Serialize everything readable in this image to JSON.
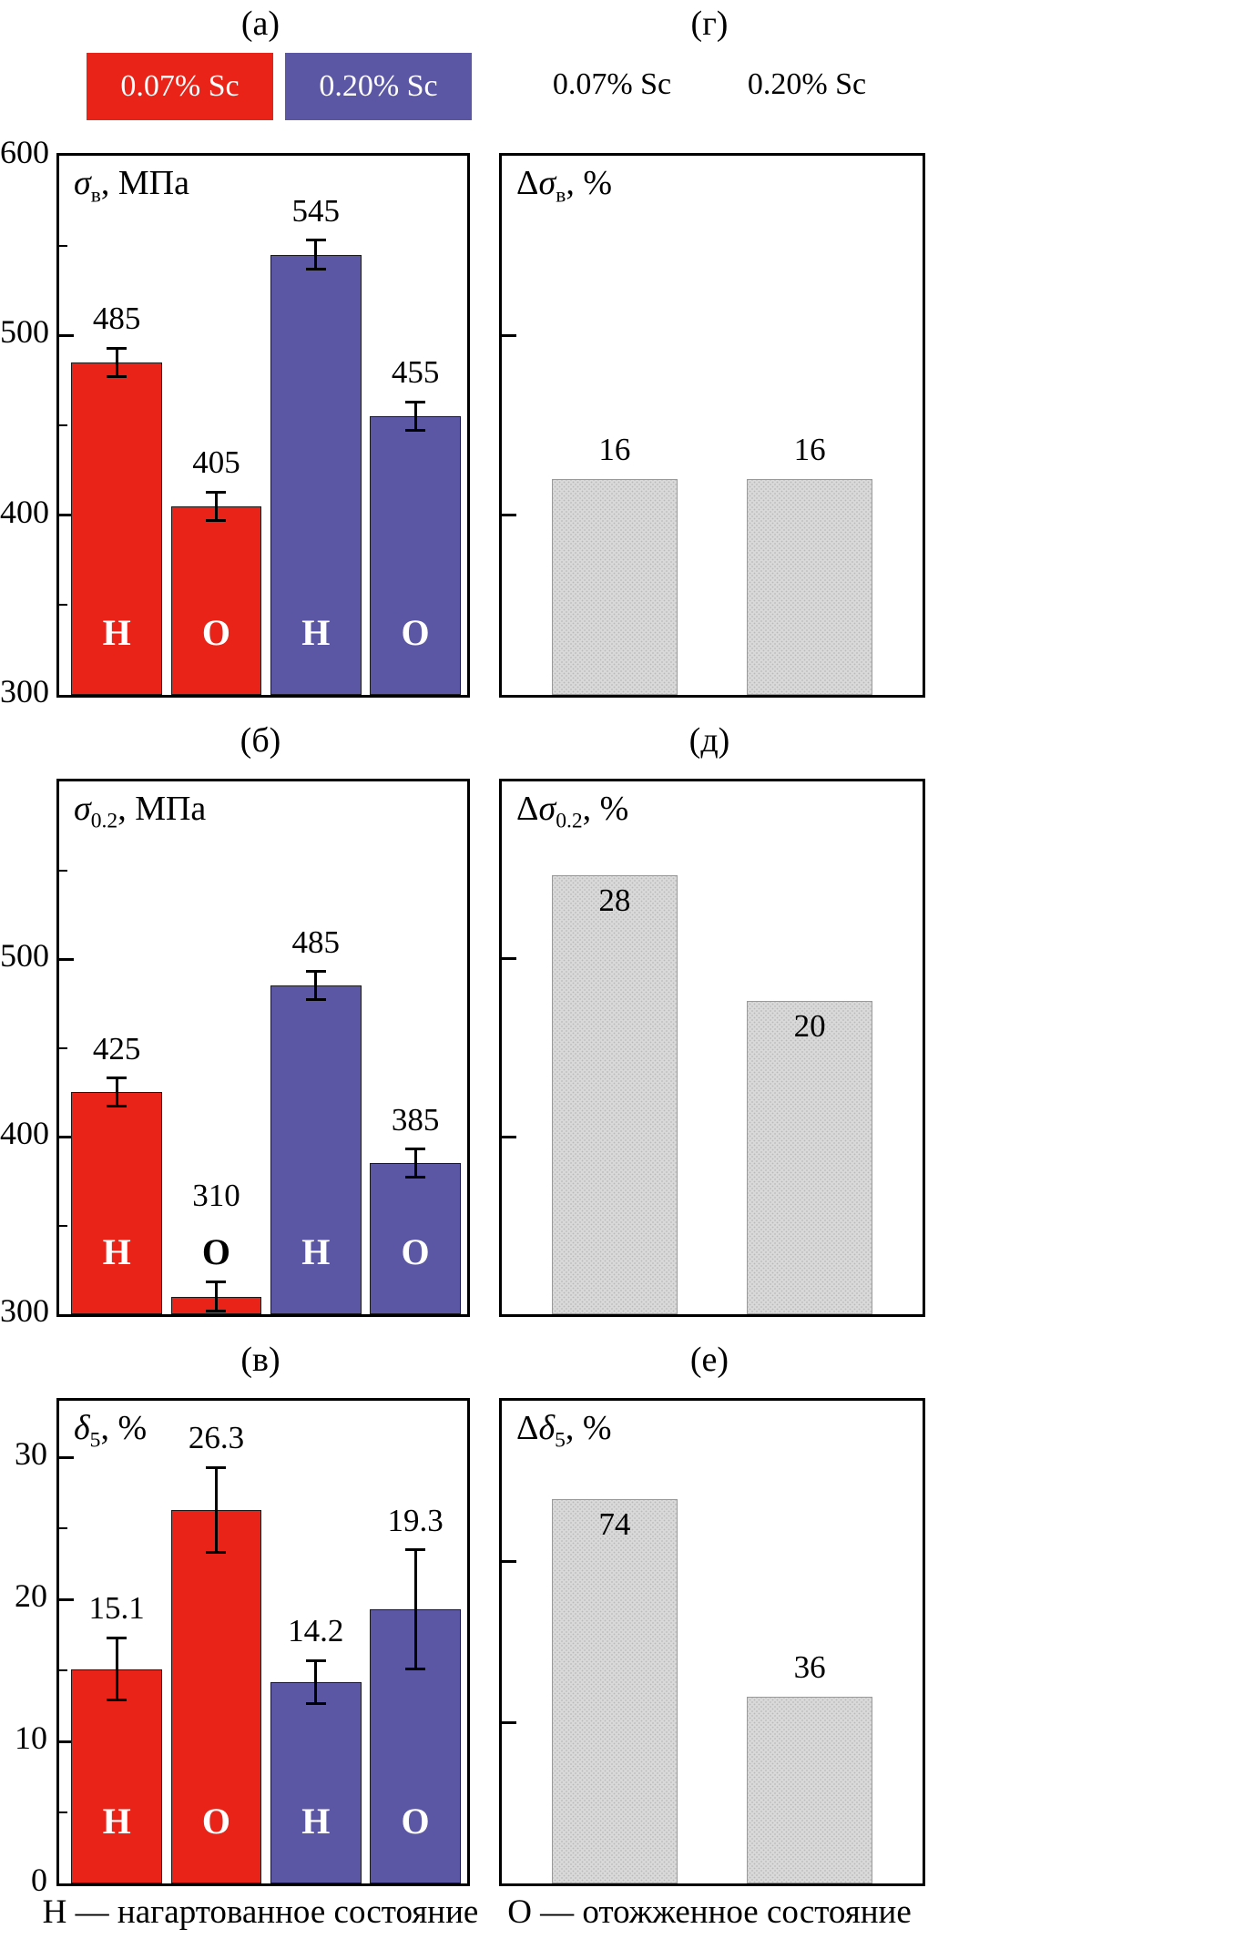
{
  "legend": {
    "items": [
      {
        "label": "0.07% Sc",
        "color": "#ea2318",
        "text_color": "#ffffff"
      },
      {
        "label": "0.20% Sc",
        "color": "#5c57a5",
        "text_color": "#ffffff"
      }
    ]
  },
  "right_headers": [
    "0.07% Sc",
    "0.20% Sc"
  ],
  "captions": {
    "left": "Н — нагартованное состояние",
    "right": "О — отожженное состояние"
  },
  "colors": {
    "red": "#ea2318",
    "purple": "#5c57a5",
    "gray": "#d9d9d9"
  },
  "chart_data": [
    {
      "id": "a",
      "panel_label": "(а)",
      "type": "bar",
      "title": {
        "prefix": "",
        "sym": "σ",
        "sub": "в",
        "rest": ", МПа"
      },
      "title_text": "σв, МПа",
      "ylim": [
        300,
        600
      ],
      "yticks": [
        {
          "value": 300,
          "label": "300"
        },
        {
          "value": 400,
          "label": "400"
        },
        {
          "value": 500,
          "label": "500"
        },
        {
          "value": 600,
          "label": "600"
        }
      ],
      "minor_yticks": [
        350,
        450,
        550
      ],
      "categories": [
        "Н",
        "О",
        "Н",
        "О"
      ],
      "bars": [
        {
          "value": 485,
          "error": 8,
          "label": "485",
          "color": "red",
          "state": "Н",
          "state_color": "#ffffff",
          "label_pos": "above"
        },
        {
          "value": 405,
          "error": 8,
          "label": "405",
          "color": "red",
          "state": "О",
          "state_color": "#ffffff",
          "label_pos": "above"
        },
        {
          "value": 545,
          "error": 8,
          "label": "545",
          "color": "purple",
          "state": "Н",
          "state_color": "#ffffff",
          "label_pos": "above"
        },
        {
          "value": 455,
          "error": 8,
          "label": "455",
          "color": "purple",
          "state": "О",
          "state_color": "#ffffff",
          "label_pos": "above"
        }
      ]
    },
    {
      "id": "b",
      "panel_label": "(б)",
      "type": "bar",
      "title": {
        "prefix": "",
        "sym": "σ",
        "sub": "0.2",
        "rest": ", МПа"
      },
      "title_text": "σ0.2, МПа",
      "ylim": [
        300,
        600
      ],
      "yticks": [
        {
          "value": 300,
          "label": "300"
        },
        {
          "value": 400,
          "label": "400"
        },
        {
          "value": 500,
          "label": "500"
        }
      ],
      "minor_yticks": [
        350,
        450,
        550
      ],
      "categories": [
        "Н",
        "О",
        "Н",
        "О"
      ],
      "bars": [
        {
          "value": 425,
          "error": 8,
          "label": "425",
          "color": "red",
          "state": "Н",
          "state_color": "#ffffff",
          "label_pos": "above"
        },
        {
          "value": 310,
          "error": 8,
          "label": "310",
          "color": "red",
          "state": "О",
          "state_color": "#000000",
          "label_pos": "above"
        },
        {
          "value": 485,
          "error": 8,
          "label": "485",
          "color": "purple",
          "state": "Н",
          "state_color": "#ffffff",
          "label_pos": "above"
        },
        {
          "value": 385,
          "error": 8,
          "label": "385",
          "color": "purple",
          "state": "О",
          "state_color": "#ffffff",
          "label_pos": "above"
        }
      ]
    },
    {
      "id": "v",
      "panel_label": "(в)",
      "type": "bar",
      "title": {
        "prefix": "",
        "sym": "δ",
        "sub": "5",
        "rest": ", %"
      },
      "title_text": "δ5, %",
      "ylim": [
        0,
        34
      ],
      "yticks": [
        {
          "value": 0,
          "label": "0"
        },
        {
          "value": 10,
          "label": "10"
        },
        {
          "value": 20,
          "label": "20"
        },
        {
          "value": 30,
          "label": "30"
        }
      ],
      "minor_yticks": [
        5,
        15,
        25
      ],
      "categories": [
        "Н",
        "О",
        "Н",
        "О"
      ],
      "bars": [
        {
          "value": 15.1,
          "error": 2.2,
          "label": "15.1",
          "color": "red",
          "state": "Н",
          "state_color": "#ffffff",
          "label_pos": "above"
        },
        {
          "value": 26.3,
          "error": 3.0,
          "label": "26.3",
          "color": "red",
          "state": "О",
          "state_color": "#ffffff",
          "label_pos": "above"
        },
        {
          "value": 14.2,
          "error": 1.5,
          "label": "14.2",
          "color": "purple",
          "state": "Н",
          "state_color": "#ffffff",
          "label_pos": "above"
        },
        {
          "value": 19.3,
          "error": 4.2,
          "label": "19.3",
          "color": "purple",
          "state": "О",
          "state_color": "#ffffff",
          "label_pos": "above"
        }
      ]
    },
    {
      "id": "g",
      "panel_label": "(г)",
      "type": "bar",
      "title": {
        "prefix": "Δ",
        "sym": "σ",
        "sub": "в",
        "rest": ", %"
      },
      "title_text": "Δσв, %",
      "ylim": [
        0,
        40
      ],
      "yticks": [
        {
          "value": 13.33,
          "label": ""
        },
        {
          "value": 26.67,
          "label": ""
        }
      ],
      "minor_yticks": [],
      "categories": [
        "0.07% Sc",
        "0.20% Sc"
      ],
      "bars": [
        {
          "value": 16,
          "error": 0,
          "label": "16",
          "color": "gray",
          "label_pos": "above"
        },
        {
          "value": 16,
          "error": 0,
          "label": "16",
          "color": "gray",
          "label_pos": "above"
        }
      ]
    },
    {
      "id": "d",
      "panel_label": "(д)",
      "type": "bar",
      "title": {
        "prefix": "Δ",
        "sym": "σ",
        "sub": "0.2",
        "rest": ", %"
      },
      "title_text": "Δσ0.2, %",
      "ylim": [
        0,
        34
      ],
      "yticks": [
        {
          "value": 11.33,
          "label": ""
        },
        {
          "value": 22.67,
          "label": ""
        }
      ],
      "minor_yticks": [],
      "categories": [
        "0.07% Sc",
        "0.20% Sc"
      ],
      "bars": [
        {
          "value": 28,
          "error": 0,
          "label": "28",
          "color": "gray",
          "label_pos": "inside"
        },
        {
          "value": 20,
          "error": 0,
          "label": "20",
          "color": "gray",
          "label_pos": "inside"
        }
      ]
    },
    {
      "id": "e",
      "panel_label": "(е)",
      "type": "bar",
      "title": {
        "prefix": "Δ",
        "sym": "δ",
        "sub": "5",
        "rest": ", %"
      },
      "title_text": "Δδ5, %",
      "ylim": [
        0,
        93
      ],
      "yticks": [
        {
          "value": 31,
          "label": ""
        },
        {
          "value": 62,
          "label": ""
        }
      ],
      "minor_yticks": [],
      "categories": [
        "0.07% Sc",
        "0.20% Sc"
      ],
      "bars": [
        {
          "value": 74,
          "error": 0,
          "label": "74",
          "color": "gray",
          "label_pos": "inside"
        },
        {
          "value": 36,
          "error": 0,
          "label": "36",
          "color": "gray",
          "label_pos": "above"
        }
      ]
    }
  ]
}
